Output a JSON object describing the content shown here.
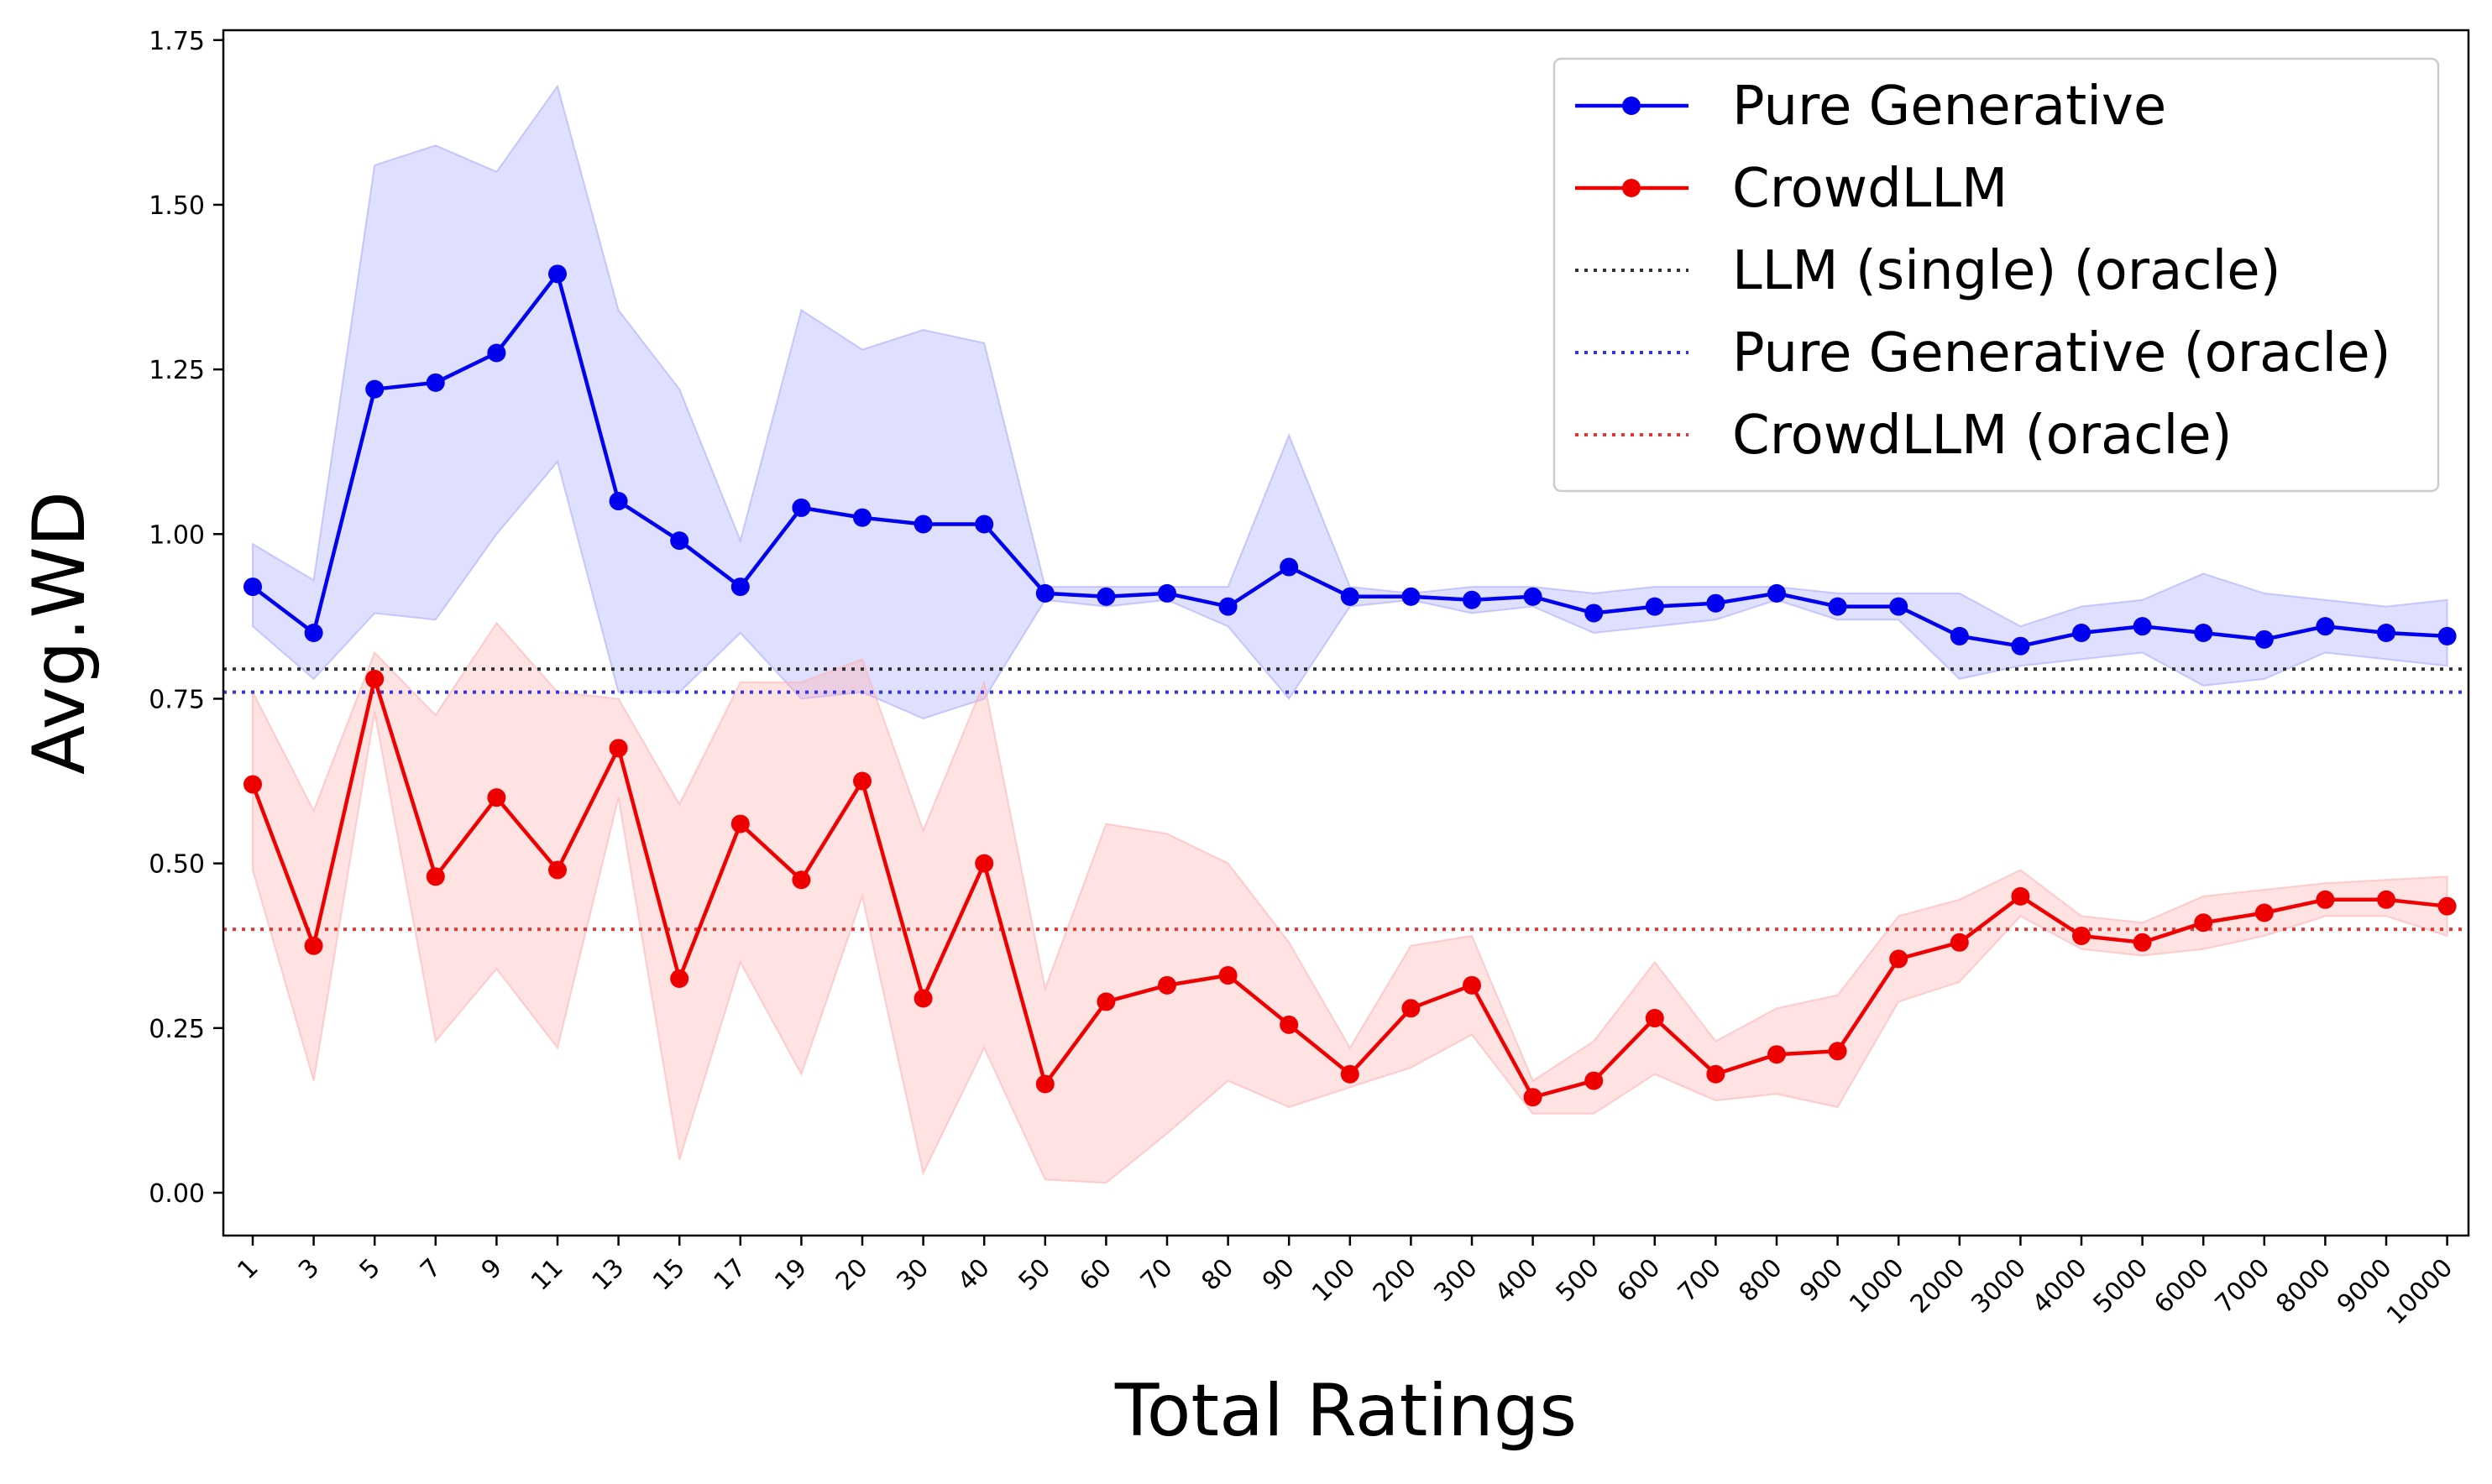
{
  "chart_data": {
    "type": "line",
    "title": "",
    "xlabel": "Total Ratings",
    "ylabel": "Avg.WD",
    "ylim": [
      -0.065,
      1.765
    ],
    "y_ticks": [
      "0.00",
      "0.25",
      "0.50",
      "0.75",
      "1.00",
      "1.25",
      "1.50",
      "1.75"
    ],
    "y_tick_values": [
      0.0,
      0.25,
      0.5,
      0.75,
      1.0,
      1.25,
      1.5,
      1.75
    ],
    "categories": [
      "1",
      "3",
      "5",
      "7",
      "9",
      "11",
      "13",
      "15",
      "17",
      "19",
      "20",
      "30",
      "40",
      "50",
      "60",
      "70",
      "80",
      "90",
      "100",
      "200",
      "300",
      "400",
      "500",
      "600",
      "700",
      "800",
      "900",
      "1000",
      "2000",
      "3000",
      "4000",
      "5000",
      "6000",
      "7000",
      "8000",
      "9000",
      "10000"
    ],
    "series": [
      {
        "name": "Pure Generative",
        "color": "#0000ee",
        "band_color": "#aaaaff",
        "values": [
          0.92,
          0.85,
          1.22,
          1.23,
          1.275,
          1.395,
          1.05,
          0.99,
          0.92,
          1.04,
          1.025,
          1.015,
          1.015,
          0.91,
          0.905,
          0.91,
          0.89,
          0.95,
          0.905,
          0.905,
          0.9,
          0.905,
          0.88,
          0.89,
          0.895,
          0.91,
          0.89,
          0.89,
          0.845,
          0.83,
          0.85,
          0.86,
          0.85,
          0.84,
          0.86,
          0.85,
          0.845
        ],
        "lower": [
          0.86,
          0.78,
          0.88,
          0.87,
          1.0,
          1.11,
          0.76,
          0.76,
          0.85,
          0.75,
          0.76,
          0.72,
          0.75,
          0.9,
          0.89,
          0.9,
          0.86,
          0.75,
          0.89,
          0.9,
          0.88,
          0.89,
          0.85,
          0.86,
          0.87,
          0.9,
          0.87,
          0.87,
          0.78,
          0.8,
          0.81,
          0.82,
          0.77,
          0.78,
          0.82,
          0.81,
          0.8
        ],
        "upper": [
          0.985,
          0.93,
          1.56,
          1.59,
          1.55,
          1.68,
          1.34,
          1.22,
          0.99,
          1.34,
          1.28,
          1.31,
          1.29,
          0.92,
          0.92,
          0.92,
          0.92,
          1.15,
          0.92,
          0.91,
          0.92,
          0.92,
          0.91,
          0.92,
          0.92,
          0.92,
          0.91,
          0.91,
          0.91,
          0.86,
          0.89,
          0.9,
          0.94,
          0.91,
          0.9,
          0.89,
          0.9
        ]
      },
      {
        "name": "CrowdLLM",
        "color": "#ee0000",
        "band_color": "#ffb3b3",
        "values": [
          0.62,
          0.375,
          0.78,
          0.48,
          0.6,
          0.49,
          0.675,
          0.325,
          0.56,
          0.475,
          0.625,
          0.295,
          0.5,
          0.165,
          0.29,
          0.315,
          0.33,
          0.255,
          0.18,
          0.28,
          0.315,
          0.145,
          0.17,
          0.265,
          0.18,
          0.21,
          0.215,
          0.355,
          0.38,
          0.45,
          0.39,
          0.38,
          0.41,
          0.425,
          0.445,
          0.445,
          0.435
        ],
        "lower": [
          0.49,
          0.17,
          0.73,
          0.23,
          0.34,
          0.22,
          0.6,
          0.05,
          0.35,
          0.18,
          0.45,
          0.03,
          0.22,
          0.02,
          0.015,
          0.09,
          0.17,
          0.13,
          0.16,
          0.19,
          0.24,
          0.12,
          0.12,
          0.18,
          0.14,
          0.15,
          0.13,
          0.29,
          0.32,
          0.42,
          0.37,
          0.36,
          0.37,
          0.39,
          0.42,
          0.42,
          0.39
        ],
        "upper": [
          0.76,
          0.58,
          0.82,
          0.725,
          0.865,
          0.76,
          0.75,
          0.59,
          0.775,
          0.775,
          0.81,
          0.55,
          0.775,
          0.31,
          0.56,
          0.545,
          0.5,
          0.38,
          0.22,
          0.375,
          0.39,
          0.17,
          0.23,
          0.35,
          0.23,
          0.28,
          0.3,
          0.42,
          0.445,
          0.49,
          0.42,
          0.41,
          0.45,
          0.46,
          0.47,
          0.475,
          0.48
        ]
      }
    ],
    "reference_lines": [
      {
        "name": "LLM (single) (oracle)",
        "value": 0.795,
        "color": "#333333"
      },
      {
        "name": "Pure Generative (oracle)",
        "value": 0.76,
        "color": "#3333ee"
      },
      {
        "name": "CrowdLLM (oracle)",
        "value": 0.4,
        "color": "#ee3333"
      }
    ],
    "legend": {
      "placement": "top-right",
      "entries": [
        {
          "label": "Pure Generative",
          "style": "line-marker",
          "color": "#0000ee"
        },
        {
          "label": "CrowdLLM",
          "style": "line-marker",
          "color": "#ee0000"
        },
        {
          "label": "LLM (single) (oracle)",
          "style": "dotted",
          "color": "#333333"
        },
        {
          "label": "Pure Generative (oracle)",
          "style": "dotted",
          "color": "#3333ee"
        },
        {
          "label": "CrowdLLM (oracle)",
          "style": "dotted",
          "color": "#ee3333"
        }
      ]
    }
  }
}
